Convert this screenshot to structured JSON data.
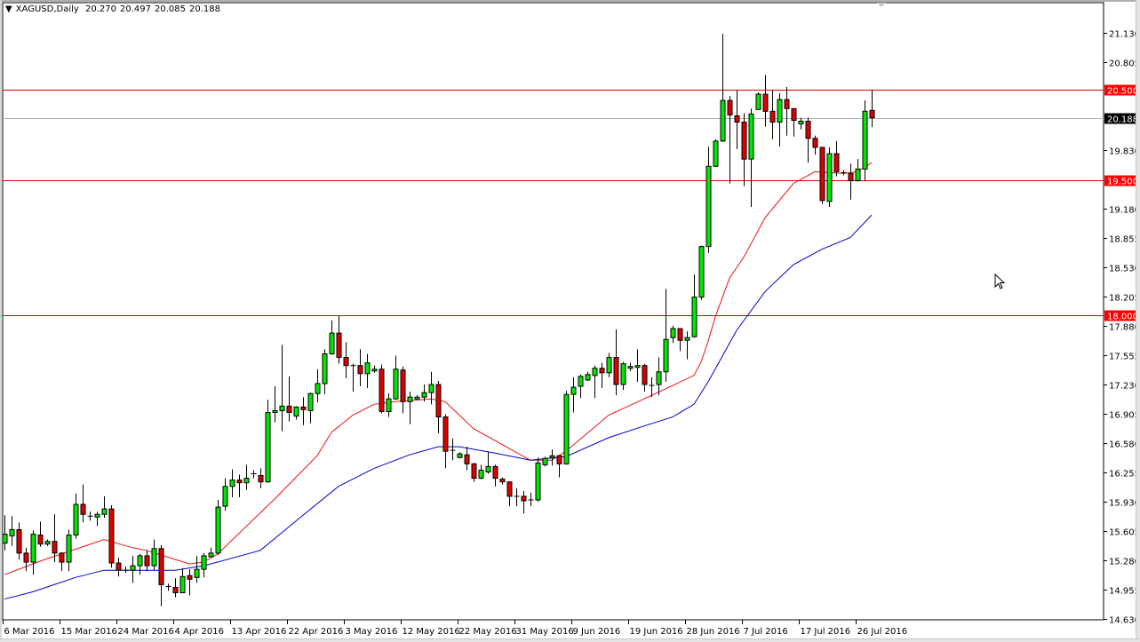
{
  "header": {
    "menu_icon": "triangle-down-icon",
    "symbol": "XAGUSD,Daily",
    "open": "20.270",
    "high": "20.497",
    "low": "20.085",
    "close": "20.188"
  },
  "colors": {
    "bull": "#00e600",
    "bear": "#dd0000",
    "wick": "#000000",
    "ma_fast": "#ee1111",
    "ma_slow": "#0000cc",
    "level_line": "#dd0000",
    "price_line": "#b0b0b0",
    "level_label_bg": "#ff0000",
    "price_label_bg": "#000000"
  },
  "chart_data": {
    "type": "candlestick",
    "title": "XAGUSD,Daily",
    "ylim": [
      14.63,
      21.13
    ],
    "grid": false,
    "y_ticks": [
      "21.130",
      "20.805",
      "19.830",
      "19.180",
      "18.855",
      "18.530",
      "18.205",
      "17.880",
      "17.555",
      "17.230",
      "16.905",
      "16.580",
      "16.255",
      "15.930",
      "15.605",
      "15.280",
      "14.955",
      "14.630"
    ],
    "x_ticks": [
      {
        "date": "2016-03-06",
        "label": "6 Mar 2016"
      },
      {
        "date": "2016-03-15",
        "label": "15 Mar 2016"
      },
      {
        "date": "2016-03-24",
        "label": "24 Mar 2016"
      },
      {
        "date": "2016-04-04",
        "label": "4 Apr 2016"
      },
      {
        "date": "2016-04-13",
        "label": "13 Apr 2016"
      },
      {
        "date": "2016-04-22",
        "label": "22 Apr 2016"
      },
      {
        "date": "2016-05-03",
        "label": "3 May 2016"
      },
      {
        "date": "2016-05-12",
        "label": "12 May 2016"
      },
      {
        "date": "2016-05-22",
        "label": "22 May 2016"
      },
      {
        "date": "2016-05-31",
        "label": "31 May 2016"
      },
      {
        "date": "2016-06-09",
        "label": "9 Jun 2016"
      },
      {
        "date": "2016-06-19",
        "label": "19 Jun 2016"
      },
      {
        "date": "2016-06-28",
        "label": "28 Jun 2016"
      },
      {
        "date": "2016-07-07",
        "label": "7 Jul 2016"
      },
      {
        "date": "2016-07-17",
        "label": "17 Jul 2016"
      },
      {
        "date": "2016-07-26",
        "label": "26 Jul 2016"
      }
    ],
    "horizontal_levels": [
      {
        "value": 20.5,
        "label": "20.500"
      },
      {
        "value": 19.5,
        "label": "19.500"
      },
      {
        "value": 18.0,
        "label": "18.000"
      }
    ],
    "current_price": {
      "value": 20.188,
      "label": "20.188"
    },
    "candle_fields": [
      "date",
      "open",
      "high",
      "low",
      "close"
    ],
    "candles": [
      [
        "2016-03-06",
        15.47,
        15.78,
        15.39,
        15.57
      ],
      [
        "2016-03-07",
        15.55,
        15.77,
        15.44,
        15.62
      ],
      [
        "2016-03-08",
        15.62,
        15.7,
        15.29,
        15.36
      ],
      [
        "2016-03-09",
        15.36,
        15.42,
        15.16,
        15.26
      ],
      [
        "2016-03-10",
        15.26,
        15.61,
        15.12,
        15.57
      ],
      [
        "2016-03-11",
        15.56,
        15.71,
        15.43,
        15.46
      ],
      [
        "2016-03-13",
        15.46,
        15.51,
        15.44,
        15.49
      ],
      [
        "2016-03-14",
        15.49,
        15.79,
        15.26,
        15.36
      ],
      [
        "2016-03-15",
        15.36,
        15.37,
        15.16,
        15.26
      ],
      [
        "2016-03-16",
        15.26,
        15.62,
        15.16,
        15.56
      ],
      [
        "2016-03-17",
        15.56,
        16.02,
        15.52,
        15.9
      ],
      [
        "2016-03-18",
        15.9,
        16.12,
        15.7,
        15.79
      ],
      [
        "2016-03-20",
        15.77,
        15.82,
        15.72,
        15.77
      ],
      [
        "2016-03-21",
        15.76,
        15.82,
        15.66,
        15.79
      ],
      [
        "2016-03-22",
        15.79,
        15.99,
        15.75,
        15.85
      ],
      [
        "2016-03-23",
        15.85,
        15.89,
        15.2,
        15.25
      ],
      [
        "2016-03-24",
        15.25,
        15.31,
        15.1,
        15.17
      ],
      [
        "2016-03-25",
        15.17,
        15.21,
        15.14,
        15.17
      ],
      [
        "2016-03-28",
        15.17,
        15.33,
        15.03,
        15.22
      ],
      [
        "2016-03-29",
        15.22,
        15.35,
        15.12,
        15.33
      ],
      [
        "2016-03-30",
        15.33,
        15.39,
        15.16,
        15.22
      ],
      [
        "2016-03-31",
        15.22,
        15.51,
        15.17,
        15.41
      ],
      [
        "2016-04-01",
        15.41,
        15.45,
        14.77,
        15.01
      ],
      [
        "2016-04-03",
        14.98,
        15.02,
        14.94,
        14.99
      ],
      [
        "2016-04-04",
        14.98,
        15.08,
        14.87,
        14.92
      ],
      [
        "2016-04-05",
        14.92,
        15.19,
        14.92,
        15.1
      ],
      [
        "2016-04-06",
        15.11,
        15.18,
        14.89,
        15.07
      ],
      [
        "2016-04-07",
        15.09,
        15.33,
        15.03,
        15.18
      ],
      [
        "2016-04-08",
        15.18,
        15.36,
        15.09,
        15.33
      ],
      [
        "2016-04-10",
        15.32,
        15.42,
        15.31,
        15.36
      ],
      [
        "2016-04-11",
        15.36,
        15.95,
        15.34,
        15.87
      ],
      [
        "2016-04-12",
        15.88,
        16.19,
        15.83,
        16.1
      ],
      [
        "2016-04-13",
        16.1,
        16.29,
        15.98,
        16.17
      ],
      [
        "2016-04-14",
        16.17,
        16.23,
        15.98,
        16.14
      ],
      [
        "2016-04-15",
        16.14,
        16.34,
        16.06,
        16.19
      ],
      [
        "2016-04-17",
        16.23,
        16.28,
        16.19,
        16.24
      ],
      [
        "2016-04-18",
        16.22,
        16.3,
        16.08,
        16.15
      ],
      [
        "2016-04-19",
        16.15,
        17.06,
        16.14,
        16.92
      ],
      [
        "2016-04-20",
        16.92,
        17.21,
        16.81,
        16.94
      ],
      [
        "2016-04-21",
        16.94,
        17.67,
        16.71,
        16.99
      ],
      [
        "2016-04-22",
        16.99,
        17.32,
        16.82,
        16.92
      ],
      [
        "2016-04-24",
        16.88,
        16.99,
        16.84,
        16.98
      ],
      [
        "2016-04-25",
        16.98,
        17.09,
        16.78,
        16.95
      ],
      [
        "2016-04-26",
        16.94,
        17.14,
        16.8,
        17.13
      ],
      [
        "2016-04-27",
        17.13,
        17.4,
        17.03,
        17.24
      ],
      [
        "2016-04-28",
        17.24,
        17.62,
        17.12,
        17.57
      ],
      [
        "2016-04-29",
        17.57,
        17.94,
        17.56,
        17.8
      ],
      [
        "2016-05-02",
        17.8,
        17.99,
        17.46,
        17.53
      ],
      [
        "2016-05-03",
        17.53,
        17.7,
        17.3,
        17.44
      ],
      [
        "2016-05-04",
        17.44,
        17.46,
        17.15,
        17.44
      ],
      [
        "2016-05-05",
        17.44,
        17.62,
        17.21,
        17.35
      ],
      [
        "2016-05-06",
        17.35,
        17.57,
        17.19,
        17.47
      ],
      [
        "2016-05-08",
        17.38,
        17.44,
        17.36,
        17.4
      ],
      [
        "2016-05-09",
        17.4,
        17.45,
        16.91,
        16.93
      ],
      [
        "2016-05-10",
        16.93,
        17.13,
        16.87,
        17.07
      ],
      [
        "2016-05-11",
        17.07,
        17.55,
        17.06,
        17.4
      ],
      [
        "2016-05-12",
        17.39,
        17.43,
        16.91,
        17.04
      ],
      [
        "2016-05-13",
        17.04,
        17.15,
        16.79,
        17.09
      ],
      [
        "2016-05-15",
        17.07,
        17.11,
        17.06,
        17.09
      ],
      [
        "2016-05-16",
        17.09,
        17.23,
        17.04,
        17.14
      ],
      [
        "2016-05-17",
        17.14,
        17.37,
        17.01,
        17.23
      ],
      [
        "2016-05-18",
        17.23,
        17.27,
        16.69,
        16.87
      ],
      [
        "2016-05-19",
        16.87,
        16.9,
        16.3,
        16.49
      ],
      [
        "2016-05-20",
        16.5,
        16.63,
        16.39,
        16.5
      ],
      [
        "2016-05-22",
        16.42,
        16.48,
        16.41,
        16.46
      ],
      [
        "2016-05-23",
        16.45,
        16.54,
        16.28,
        16.35
      ],
      [
        "2016-05-24",
        16.35,
        16.36,
        16.15,
        16.19
      ],
      [
        "2016-05-25",
        16.19,
        16.34,
        16.18,
        16.28
      ],
      [
        "2016-05-26",
        16.26,
        16.48,
        16.24,
        16.32
      ],
      [
        "2016-05-27",
        16.32,
        16.34,
        16.1,
        16.19
      ],
      [
        "2016-05-29",
        16.18,
        16.2,
        16.12,
        16.15
      ],
      [
        "2016-05-30",
        16.15,
        16.15,
        15.88,
        15.99
      ],
      [
        "2016-05-31",
        15.99,
        16.08,
        15.88,
        15.99
      ],
      [
        "2016-06-01",
        15.99,
        16.05,
        15.8,
        15.94
      ],
      [
        "2016-06-02",
        15.95,
        16.03,
        15.88,
        15.95
      ],
      [
        "2016-06-03",
        15.95,
        16.42,
        15.93,
        16.36
      ],
      [
        "2016-06-05",
        16.34,
        16.43,
        16.32,
        16.41
      ],
      [
        "2016-06-06",
        16.42,
        16.51,
        16.33,
        16.44
      ],
      [
        "2016-06-07",
        16.44,
        16.45,
        16.2,
        16.35
      ],
      [
        "2016-06-08",
        16.35,
        17.16,
        16.34,
        17.12
      ],
      [
        "2016-06-09",
        17.12,
        17.31,
        16.92,
        17.2
      ],
      [
        "2016-06-10",
        17.21,
        17.34,
        17.08,
        17.32
      ],
      [
        "2016-06-12",
        17.28,
        17.37,
        17.27,
        17.34
      ],
      [
        "2016-06-13",
        17.33,
        17.44,
        17.08,
        17.41
      ],
      [
        "2016-06-14",
        17.41,
        17.47,
        17.19,
        17.36
      ],
      [
        "2016-06-15",
        17.36,
        17.58,
        17.31,
        17.53
      ],
      [
        "2016-06-16",
        17.53,
        17.84,
        17.11,
        17.23
      ],
      [
        "2016-06-17",
        17.23,
        17.48,
        17.17,
        17.46
      ],
      [
        "2016-06-19",
        17.41,
        17.47,
        17.38,
        17.43
      ],
      [
        "2016-06-20",
        17.42,
        17.62,
        17.26,
        17.44
      ],
      [
        "2016-06-21",
        17.44,
        17.46,
        17.15,
        17.23
      ],
      [
        "2016-06-22",
        17.22,
        17.31,
        17.09,
        17.22
      ],
      [
        "2016-06-23",
        17.23,
        17.53,
        17.11,
        17.37
      ],
      [
        "2016-06-24",
        17.37,
        18.29,
        17.26,
        17.73
      ],
      [
        "2016-06-26",
        17.75,
        17.88,
        17.69,
        17.85
      ],
      [
        "2016-06-27",
        17.85,
        17.85,
        17.6,
        17.72
      ],
      [
        "2016-06-28",
        17.72,
        17.82,
        17.51,
        17.75
      ],
      [
        "2016-06-29",
        17.76,
        18.45,
        17.75,
        18.2
      ],
      [
        "2016-06-30",
        18.2,
        18.77,
        18.17,
        18.76
      ],
      [
        "2016-07-01",
        18.76,
        19.87,
        18.69,
        19.65
      ],
      [
        "2016-07-03",
        19.65,
        19.95,
        19.65,
        19.93
      ],
      [
        "2016-07-04",
        19.93,
        21.12,
        19.92,
        20.38
      ],
      [
        "2016-07-05",
        20.38,
        20.43,
        19.46,
        20.22
      ],
      [
        "2016-07-06",
        20.21,
        20.49,
        19.84,
        20.14
      ],
      [
        "2016-07-07",
        20.14,
        20.24,
        19.43,
        19.73
      ],
      [
        "2016-07-08",
        19.73,
        20.29,
        19.2,
        20.23
      ],
      [
        "2016-07-10",
        20.28,
        20.47,
        20.28,
        20.45
      ],
      [
        "2016-07-11",
        20.45,
        20.66,
        20.09,
        20.26
      ],
      [
        "2016-07-12",
        20.26,
        20.49,
        19.95,
        20.14
      ],
      [
        "2016-07-13",
        20.14,
        20.46,
        19.87,
        20.39
      ],
      [
        "2016-07-14",
        20.39,
        20.53,
        19.99,
        20.29
      ],
      [
        "2016-07-15",
        20.29,
        20.29,
        19.98,
        20.16
      ],
      [
        "2016-07-17",
        20.12,
        20.19,
        20.06,
        20.15
      ],
      [
        "2016-07-18",
        20.15,
        20.19,
        19.69,
        19.96
      ],
      [
        "2016-07-19",
        19.96,
        19.99,
        19.78,
        19.86
      ],
      [
        "2016-07-20",
        19.86,
        19.86,
        19.23,
        19.27
      ],
      [
        "2016-07-21",
        19.26,
        19.86,
        19.2,
        19.79
      ],
      [
        "2016-07-22",
        19.79,
        19.93,
        19.54,
        19.59
      ],
      [
        "2016-07-24",
        19.58,
        19.61,
        19.55,
        19.58
      ],
      [
        "2016-07-25",
        19.57,
        19.68,
        19.28,
        19.49
      ],
      [
        "2016-07-26",
        19.49,
        19.73,
        19.48,
        19.62
      ],
      [
        "2016-07-27",
        19.62,
        20.38,
        19.49,
        20.26
      ],
      [
        "2016-07-28",
        20.27,
        20.497,
        20.085,
        20.188
      ]
    ],
    "moving_averages": [
      {
        "color": "#ee1111",
        "points": [
          [
            "2016-03-06",
            15.12
          ],
          [
            "2016-03-09",
            15.21
          ],
          [
            "2016-03-11",
            15.27
          ],
          [
            "2016-03-15",
            15.35
          ],
          [
            "2016-03-22",
            15.51
          ],
          [
            "2016-03-28",
            15.42
          ],
          [
            "2016-03-30",
            15.39
          ],
          [
            "2016-04-04",
            15.29
          ],
          [
            "2016-04-06",
            15.24
          ],
          [
            "2016-04-08",
            15.26
          ],
          [
            "2016-04-11",
            15.35
          ],
          [
            "2016-04-20",
            15.96
          ],
          [
            "2016-04-27",
            16.44
          ],
          [
            "2016-04-29",
            16.7
          ],
          [
            "2016-05-04",
            16.89
          ],
          [
            "2016-05-08",
            17.01
          ],
          [
            "2016-05-11",
            17.04
          ],
          [
            "2016-05-17",
            17.07
          ],
          [
            "2016-05-19",
            17.04
          ],
          [
            "2016-05-24",
            16.74
          ],
          [
            "2016-06-02",
            16.39
          ],
          [
            "2016-06-06",
            16.39
          ],
          [
            "2016-06-08",
            16.49
          ],
          [
            "2016-06-15",
            16.89
          ],
          [
            "2016-06-21",
            17.07
          ],
          [
            "2016-06-29",
            17.33
          ],
          [
            "2016-06-30",
            17.48
          ],
          [
            "2016-07-01",
            17.71
          ],
          [
            "2016-07-03",
            17.98
          ],
          [
            "2016-07-05",
            18.41
          ],
          [
            "2016-07-07",
            18.64
          ],
          [
            "2016-07-11",
            19.08
          ],
          [
            "2016-07-15",
            19.46
          ],
          [
            "2016-07-19",
            19.59
          ],
          [
            "2016-07-24",
            19.57
          ],
          [
            "2016-07-26",
            19.59
          ],
          [
            "2016-07-28",
            19.69
          ]
        ]
      },
      {
        "color": "#0000cc",
        "points": [
          [
            "2016-03-06",
            14.85
          ],
          [
            "2016-03-10",
            14.93
          ],
          [
            "2016-03-14",
            15.01
          ],
          [
            "2016-03-17",
            15.09
          ],
          [
            "2016-03-22",
            15.17
          ],
          [
            "2016-04-04",
            15.17
          ],
          [
            "2016-04-08",
            15.22
          ],
          [
            "2016-04-11",
            15.26
          ],
          [
            "2016-04-18",
            15.39
          ],
          [
            "2016-04-25",
            15.78
          ],
          [
            "2016-05-02",
            16.1
          ],
          [
            "2016-05-08",
            16.3
          ],
          [
            "2016-05-13",
            16.45
          ],
          [
            "2016-05-18",
            16.54
          ],
          [
            "2016-05-22",
            16.54
          ],
          [
            "2016-05-27",
            16.47
          ],
          [
            "2016-06-02",
            16.39
          ],
          [
            "2016-06-08",
            16.43
          ],
          [
            "2016-06-15",
            16.64
          ],
          [
            "2016-06-21",
            16.77
          ],
          [
            "2016-06-26",
            16.87
          ],
          [
            "2016-06-29",
            17.01
          ],
          [
            "2016-07-01",
            17.26
          ],
          [
            "2016-07-06",
            17.83
          ],
          [
            "2016-07-11",
            18.26
          ],
          [
            "2016-07-15",
            18.56
          ],
          [
            "2016-07-20",
            18.73
          ],
          [
            "2016-07-25",
            18.86
          ],
          [
            "2016-07-28",
            19.11
          ]
        ]
      }
    ]
  },
  "overlay": {
    "chart_shift_marker": "triangle-down-icon",
    "cursor": "arrow-cursor-icon"
  }
}
